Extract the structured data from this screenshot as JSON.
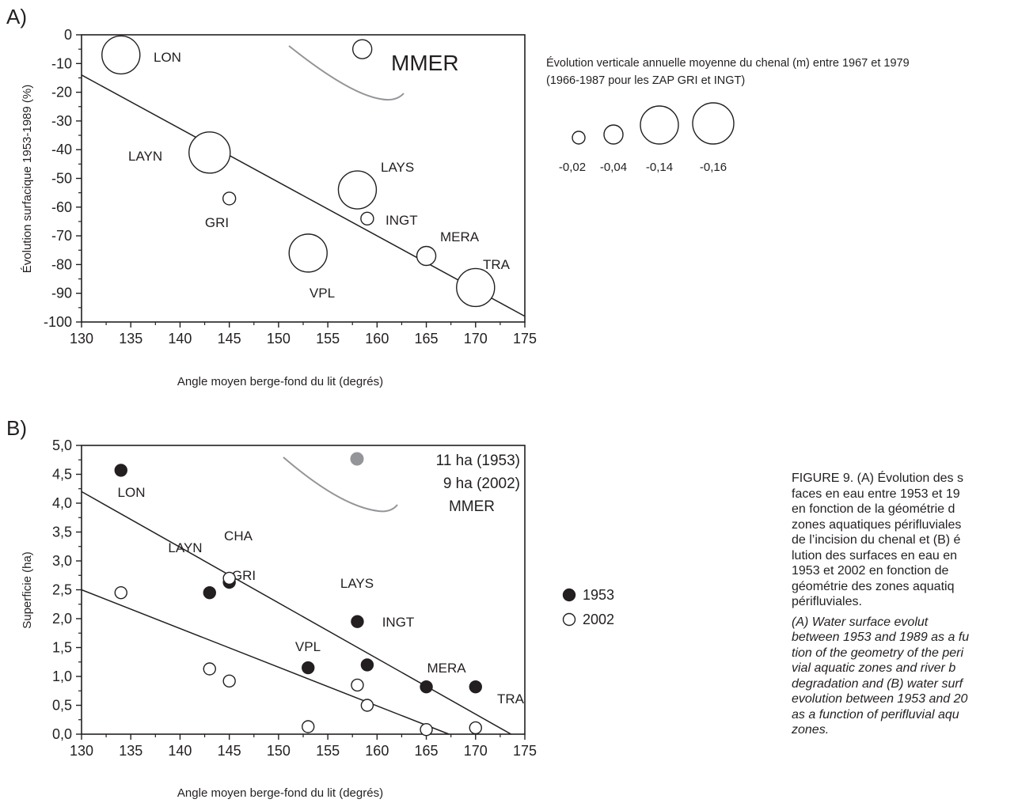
{
  "chart_data": [
    {
      "panel_label": "A)",
      "type": "scatter",
      "xlabel": "Angle moyen berge-fond du lit (degrés)",
      "ylabel": "Évolution surfacique 1953-1989 (%)",
      "xlim": [
        130,
        175
      ],
      "ylim": [
        -100,
        0
      ],
      "x_ticks": [
        "130",
        "135",
        "140",
        "145",
        "150",
        "155",
        "160",
        "165",
        "170",
        "175"
      ],
      "y_ticks": [
        "0",
        "-10",
        "-20",
        "-30",
        "-40",
        "-50",
        "-60",
        "-70",
        "-80",
        "-90",
        "-100"
      ],
      "grid": false,
      "size_variable": "Évolution verticale annuelle moyenne du chenal (m)",
      "points": [
        {
          "label": "LON",
          "x": 134,
          "y": -7,
          "size": -0.14
        },
        {
          "label": "LAYN",
          "x": 143,
          "y": -41,
          "size": -0.16
        },
        {
          "label": "GRI",
          "x": 145,
          "y": -57,
          "size": -0.02
        },
        {
          "label": "VPL",
          "x": 153,
          "y": -76,
          "size": -0.14
        },
        {
          "label": "LAYS",
          "x": 158,
          "y": -54,
          "size": -0.14
        },
        {
          "label": "INGT",
          "x": 159,
          "y": -64,
          "size": -0.02
        },
        {
          "label": "MERA",
          "x": 165,
          "y": -77,
          "size": -0.04
        },
        {
          "label": "TRA",
          "x": 170,
          "y": -88,
          "size": -0.14
        },
        {
          "label": "",
          "x": 158.5,
          "y": -5,
          "size": -0.04
        }
      ],
      "regression_line": [
        {
          "x": 130,
          "y": -14
        },
        {
          "x": 175,
          "y": -98
        }
      ],
      "inset_label": "MMER",
      "legend": {
        "title_line1": "Évolution verticale annuelle moyenne du chenal (m) entre 1967 et 1979",
        "title_line2": "(1966-1987 pour les ZAP GRI et INGT)",
        "sizes": [
          "-0,02",
          "-0,04",
          "-0,14",
          "-0,16"
        ]
      }
    },
    {
      "panel_label": "B)",
      "type": "scatter",
      "xlabel": "Angle moyen berge-fond du lit (degrés)",
      "ylabel": "Superficie (ha)",
      "xlim": [
        130,
        175
      ],
      "ylim": [
        0,
        5
      ],
      "x_ticks": [
        "130",
        "135",
        "140",
        "145",
        "150",
        "155",
        "160",
        "165",
        "170",
        "175"
      ],
      "y_ticks": [
        "0,0",
        "0,5",
        "1,0",
        "1,5",
        "2,0",
        "2,5",
        "3,0",
        "3,5",
        "4,0",
        "4,5",
        "5,0"
      ],
      "grid": false,
      "series": [
        {
          "name": "1953",
          "marker": "filled",
          "points": [
            {
              "label": "LON",
              "x": 134,
              "y": 4.57
            },
            {
              "label": "LAYN",
              "x": 143,
              "y": 2.45
            },
            {
              "label": "GRI",
              "x": 145,
              "y": 2.63
            },
            {
              "label": "LAYS",
              "x": 158,
              "y": 1.95
            },
            {
              "label": "VPL",
              "x": 153,
              "y": 1.15
            },
            {
              "label": "INGT",
              "x": 159,
              "y": 1.2
            },
            {
              "label": "MERA",
              "x": 165,
              "y": 0.82
            },
            {
              "label": "TRA",
              "x": 170,
              "y": 0.82
            }
          ]
        },
        {
          "name": "2002",
          "marker": "open",
          "points": [
            {
              "label": "",
              "x": 134,
              "y": 2.45
            },
            {
              "label": "",
              "x": 143,
              "y": 1.13
            },
            {
              "label": "",
              "x": 145,
              "y": 0.92
            },
            {
              "label": "CHA",
              "x": 145,
              "y": 2.7
            },
            {
              "label": "",
              "x": 153,
              "y": 0.13
            },
            {
              "label": "",
              "x": 158,
              "y": 0.85
            },
            {
              "label": "",
              "x": 159,
              "y": 0.5
            },
            {
              "label": "",
              "x": 165,
              "y": 0.08
            },
            {
              "label": "",
              "x": 170,
              "y": 0.11
            }
          ]
        }
      ],
      "regression_lines": [
        [
          {
            "x": 130,
            "y": 4.2
          },
          {
            "x": 173.6,
            "y": 0
          }
        ],
        [
          {
            "x": 130,
            "y": 2.5
          },
          {
            "x": 167.3,
            "y": 0
          }
        ]
      ],
      "inset": {
        "label_1953": "11 ha (1953)",
        "label_2002": "9 ha (2002)",
        "label": "MMER",
        "marker_color": "#939598"
      },
      "legend": [
        "1953",
        "2002"
      ]
    }
  ],
  "caption": {
    "fr": [
      "FIGURE 9.  (A) Évolution des s",
      "faces en eau entre 1953 et 19",
      "en fonction de la géométrie d",
      "zones aquatiques périfluviales",
      "de l’incision du chenal et (B) é",
      "lution des surfaces en eau en",
      "1953 et 2002 en fonction de",
      "géométrie des zones aquatiq",
      "périfluviales."
    ],
    "en": [
      "(A)  Water  surface  evolut",
      "between 1953 and 1989 as a fu",
      "tion of the geometry of the peri",
      "vial aquatic zones and river b",
      "degradation and (B) water surf",
      "evolution between 1953 and 20",
      "as a function of perifluvial aqu",
      "zones."
    ]
  },
  "colors": {
    "ink": "#231f20",
    "grey": "#939598"
  }
}
